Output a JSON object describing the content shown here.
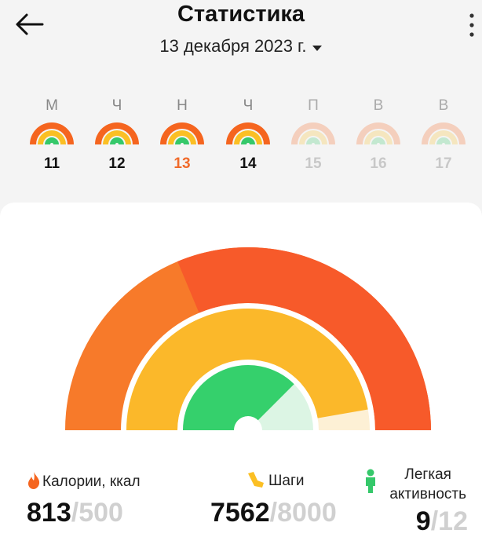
{
  "header": {
    "title": "Статистика",
    "date": "13 декабря 2023 г."
  },
  "week": [
    {
      "weekday": "М",
      "date": 11
    },
    {
      "weekday": "Ч",
      "date": 12
    },
    {
      "weekday": "Н",
      "date": 13
    },
    {
      "weekday": "Ч",
      "date": 14
    },
    {
      "weekday": "П",
      "date": 15
    },
    {
      "weekday": "В",
      "date": 16
    },
    {
      "weekday": "В",
      "date": 17
    }
  ],
  "stats": [
    {
      "label": "Калории, ккал",
      "value": 813,
      "separator": "/",
      "goal": 500
    },
    {
      "label": "Шаги",
      "value": 7562,
      "separator": "/",
      "goal": 8000
    },
    {
      "label_lines": [
        "Легкая",
        "активность"
      ],
      "value": 9,
      "separator": "/",
      "goal": 12
    }
  ]
}
